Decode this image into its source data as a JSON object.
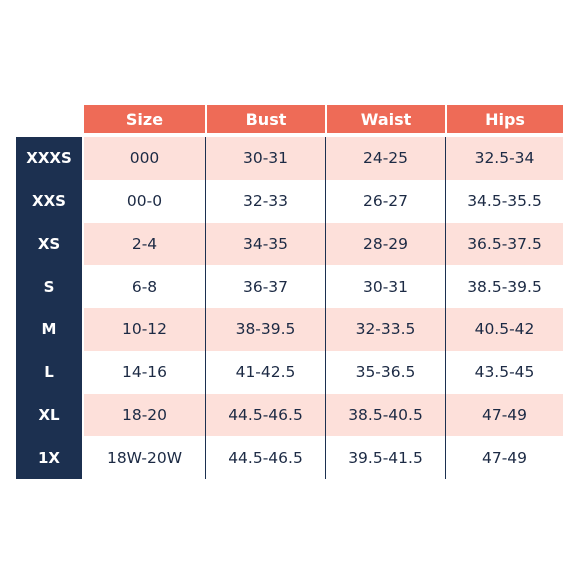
{
  "columns": {
    "size": "Size",
    "bust": "Bust",
    "waist": "Waist",
    "hips": "Hips"
  },
  "colors": {
    "header_bg": "#ee6b57",
    "size_column_bg": "#1c3050",
    "shaded_row_bg": "#fde0da",
    "text": "#1c2a44"
  },
  "rows": [
    {
      "label": "XXXS",
      "size": "000",
      "bust": "30-31",
      "waist": "24-25",
      "hips": "32.5-34"
    },
    {
      "label": "XXS",
      "size": "00-0",
      "bust": "32-33",
      "waist": "26-27",
      "hips": "34.5-35.5"
    },
    {
      "label": "XS",
      "size": "2-4",
      "bust": "34-35",
      "waist": "28-29",
      "hips": "36.5-37.5"
    },
    {
      "label": "S",
      "size": "6-8",
      "bust": "36-37",
      "waist": "30-31",
      "hips": "38.5-39.5"
    },
    {
      "label": "M",
      "size": "10-12",
      "bust": "38-39.5",
      "waist": "32-33.5",
      "hips": "40.5-42"
    },
    {
      "label": "L",
      "size": "14-16",
      "bust": "41-42.5",
      "waist": "35-36.5",
      "hips": "43.5-45"
    },
    {
      "label": "XL",
      "size": "18-20",
      "bust": "44.5-46.5",
      "waist": "38.5-40.5",
      "hips": "47-49"
    },
    {
      "label": "1X",
      "size": "18W-20W",
      "bust": "44.5-46.5",
      "waist": "39.5-41.5",
      "hips": "47-49"
    }
  ]
}
